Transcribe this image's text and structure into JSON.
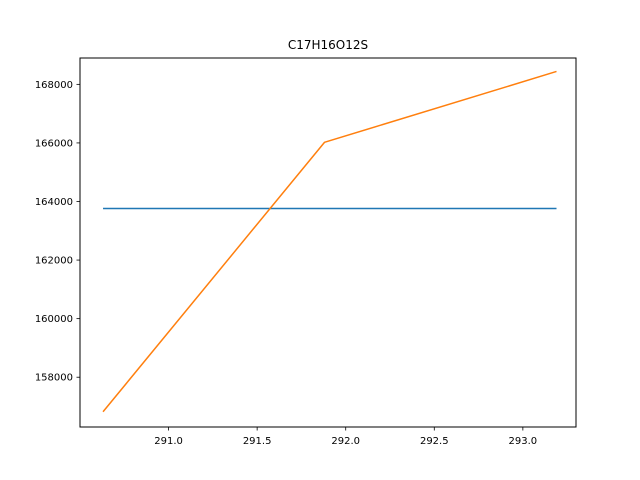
{
  "chart_data": {
    "type": "line",
    "title": "C17H16O12S",
    "xlabel": "",
    "ylabel": "",
    "xlim": [
      290.5,
      293.3
    ],
    "ylim": [
      156300,
      168900
    ],
    "xticks": [
      291.0,
      291.5,
      292.0,
      292.5,
      293.0
    ],
    "xtick_labels": [
      "291.0",
      "291.5",
      "292.0",
      "292.5",
      "293.0"
    ],
    "yticks": [
      158000,
      160000,
      162000,
      164000,
      166000,
      168000
    ],
    "ytick_labels": [
      "158000",
      "160000",
      "162000",
      "164000",
      "166000",
      "168000"
    ],
    "grid": false,
    "series": [
      {
        "color": "#1f77b4",
        "points": [
          [
            290.63,
            163760
          ],
          [
            293.19,
            163760
          ]
        ]
      },
      {
        "color": "#ff7f0e",
        "points": [
          [
            290.63,
            156820
          ],
          [
            291.88,
            166020
          ],
          [
            293.19,
            168440
          ]
        ]
      }
    ]
  }
}
